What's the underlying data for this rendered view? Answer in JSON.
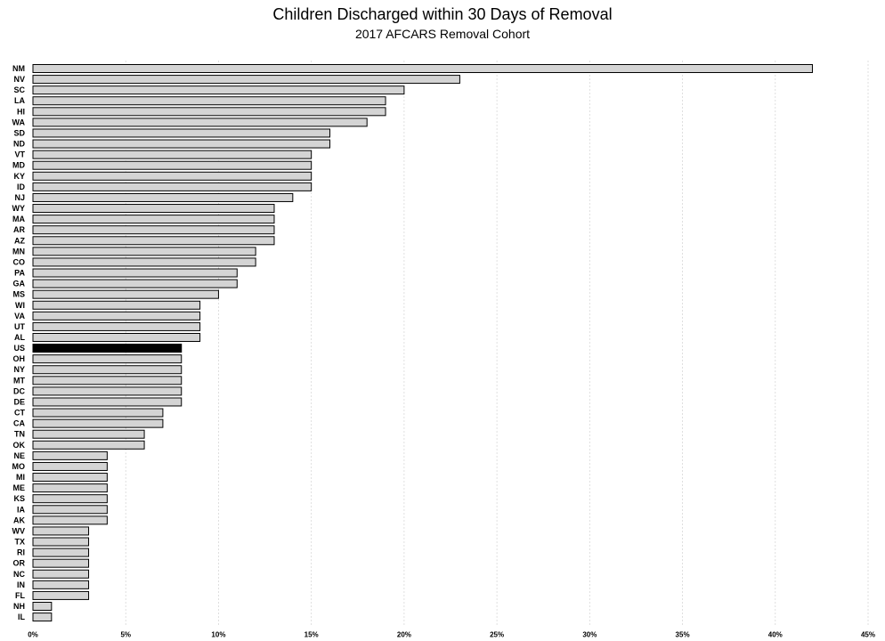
{
  "chart_data": {
    "type": "bar",
    "orientation": "horizontal",
    "title": "Children Discharged within 30 Days of Removal",
    "subtitle": "2017 AFCARS Removal Cohort",
    "xlabel": "",
    "ylabel": "",
    "xlim": [
      0,
      45
    ],
    "x_ticks": [
      "0%",
      "5%",
      "10%",
      "15%",
      "20%",
      "25%",
      "30%",
      "35%",
      "40%",
      "45%"
    ],
    "grid": "vertical dotted",
    "highlight_category": "US",
    "colors": {
      "bar": "#d4d4d4",
      "highlight": "#000000",
      "outline": "#000000"
    },
    "categories": [
      "NM",
      "NV",
      "SC",
      "LA",
      "HI",
      "WA",
      "SD",
      "ND",
      "VT",
      "MD",
      "KY",
      "ID",
      "NJ",
      "WY",
      "MA",
      "AR",
      "AZ",
      "MN",
      "CO",
      "PA",
      "GA",
      "MS",
      "WI",
      "VA",
      "UT",
      "AL",
      "US",
      "OH",
      "NY",
      "MT",
      "DC",
      "DE",
      "CT",
      "CA",
      "TN",
      "OK",
      "NE",
      "MO",
      "MI",
      "ME",
      "KS",
      "IA",
      "AK",
      "WV",
      "TX",
      "RI",
      "OR",
      "NC",
      "IN",
      "FL",
      "NH",
      "IL"
    ],
    "values": [
      42,
      23,
      20,
      19,
      19,
      18,
      16,
      16,
      15,
      15,
      15,
      15,
      14,
      13,
      13,
      13,
      13,
      12,
      12,
      11,
      11,
      10,
      9,
      9,
      9,
      9,
      8,
      8,
      8,
      8,
      8,
      8,
      7,
      7,
      6,
      6,
      4,
      4,
      4,
      4,
      4,
      4,
      4,
      3,
      3,
      3,
      3,
      3,
      3,
      3,
      1,
      1
    ]
  }
}
